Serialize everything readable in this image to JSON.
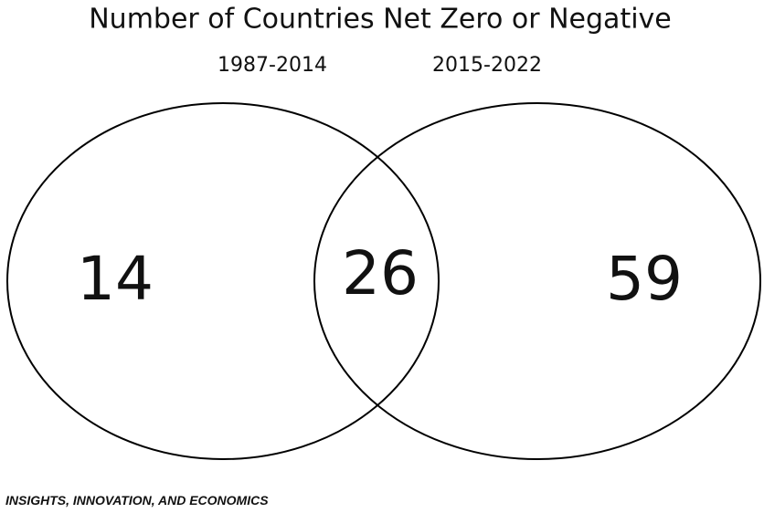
{
  "title": "Number of Countries Net Zero or Negative",
  "sets": [
    {
      "label": "1987-2014"
    },
    {
      "label": "2015-2022"
    }
  ],
  "regions": {
    "only_first": 14,
    "both": 26,
    "only_second": 59
  },
  "footer": "INSIGHTS, INNOVATION, AND ECONOMICS"
}
